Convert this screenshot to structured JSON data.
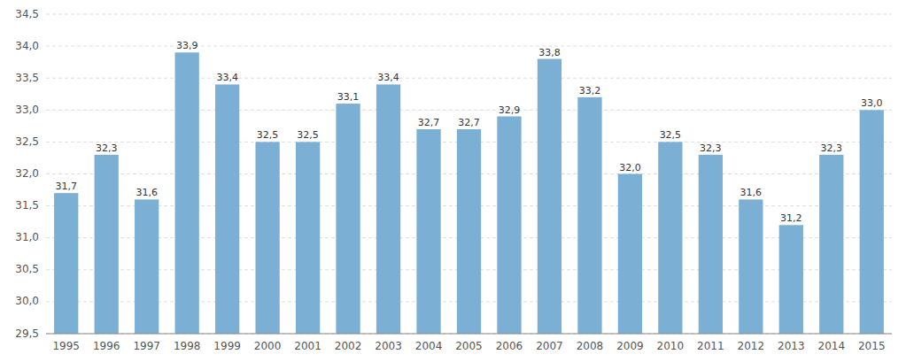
{
  "chart_data": {
    "type": "bar",
    "categories": [
      "1995",
      "1996",
      "1997",
      "1998",
      "1999",
      "2000",
      "2001",
      "2002",
      "2003",
      "2004",
      "2005",
      "2006",
      "2007",
      "2008",
      "2009",
      "2010",
      "2011",
      "2012",
      "2013",
      "2014",
      "2015"
    ],
    "values": [
      31.7,
      32.3,
      31.6,
      33.9,
      33.4,
      32.5,
      32.5,
      33.1,
      33.4,
      32.7,
      32.7,
      32.9,
      33.8,
      33.2,
      32.0,
      32.5,
      32.3,
      31.6,
      31.2,
      32.3,
      33.0
    ],
    "value_labels": [
      "31,7",
      "32,3",
      "31,6",
      "33,9",
      "33,4",
      "32,5",
      "32,5",
      "33,1",
      "33,4",
      "32,7",
      "32,7",
      "32,9",
      "33,8",
      "33,2",
      "32,0",
      "32,5",
      "32,3",
      "31,6",
      "31,2",
      "32,3",
      "33,0"
    ],
    "data_labels": true,
    "color": "#7BAFD4",
    "ylim": [
      29.5,
      34.5
    ],
    "yticks": [
      {
        "value": 29.5,
        "label": "29,5"
      },
      {
        "value": 30.0,
        "label": "30,0"
      },
      {
        "value": 30.5,
        "label": "30,5"
      },
      {
        "value": 31.0,
        "label": "31,0"
      },
      {
        "value": 31.5,
        "label": "31,5"
      },
      {
        "value": 32.0,
        "label": "32,0"
      },
      {
        "value": 32.5,
        "label": "32,5"
      },
      {
        "value": 33.0,
        "label": "33,0"
      },
      {
        "value": 33.5,
        "label": "33,5"
      },
      {
        "value": 34.0,
        "label": "34,0"
      },
      {
        "value": 34.5,
        "label": "34,5"
      }
    ],
    "grid": true
  }
}
